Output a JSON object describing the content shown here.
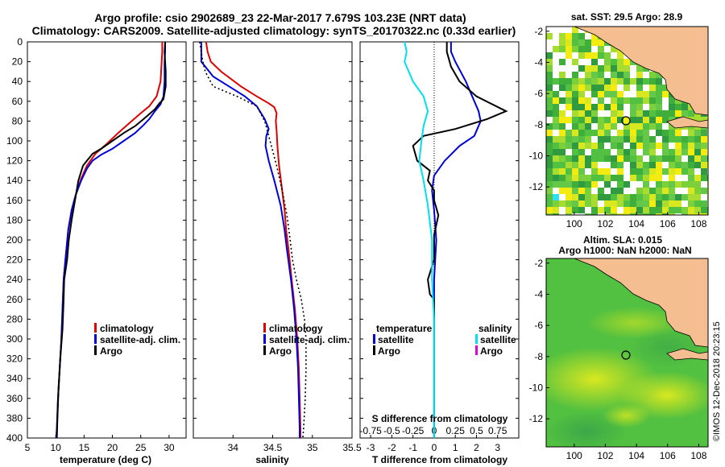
{
  "header": {
    "title_line1": "Argo profile: csio 2902689_23 22-Mar-2017 7.679S 103.23E (NRT data)",
    "title_line2": "Climatology: CARS2009. Satellite-adjusted climatology: synTS_20170322.nc (0.33d earlier)"
  },
  "colors": {
    "climatology": "#e00000",
    "satellite": "#0000dd",
    "argo": "#000000",
    "sat_salinity": "#00e0f0",
    "argo_salinity_diff": "#e000e0",
    "land": "#f5be90"
  },
  "depth_axis": {
    "ylim": [
      0,
      400
    ],
    "ticks": [
      "0",
      "20",
      "40",
      "60",
      "80",
      "100",
      "120",
      "140",
      "160",
      "180",
      "200",
      "220",
      "240",
      "260",
      "280",
      "300",
      "320",
      "340",
      "360",
      "380",
      "400"
    ]
  },
  "chart_data": [
    {
      "type": "line",
      "name": "temperature",
      "xlabel": "temperature (deg C)",
      "xlim": [
        5,
        33
      ],
      "xticks": [
        "5",
        "10",
        "15",
        "20",
        "25",
        "30"
      ],
      "xtick_values": [
        5,
        10,
        15,
        20,
        25,
        30
      ],
      "legend": [
        "climatology",
        "satellite-adj. clim.",
        "Argo"
      ],
      "series": [
        {
          "name": "climatology",
          "color": "#e00000",
          "points": [
            [
              28.8,
              0
            ],
            [
              28.8,
              10
            ],
            [
              28.7,
              20
            ],
            [
              28.5,
              40
            ],
            [
              27.8,
              55
            ],
            [
              26.5,
              65
            ],
            [
              25,
              72
            ],
            [
              23,
              82
            ],
            [
              21,
              92
            ],
            [
              19,
              103
            ],
            [
              17,
              113
            ],
            [
              15.5,
              125
            ],
            [
              14.5,
              138
            ],
            [
              13.5,
              155
            ],
            [
              12.8,
              170
            ],
            [
              12.2,
              190
            ],
            [
              11.8,
              215
            ],
            [
              11.4,
              240
            ],
            [
              11.2,
              270
            ],
            [
              11,
              300
            ],
            [
              10.7,
              330
            ],
            [
              10.4,
              360
            ],
            [
              10.2,
              390
            ],
            [
              10.1,
              400
            ]
          ]
        },
        {
          "name": "satellite-adj. clim.",
          "color": "#0000dd",
          "points": [
            [
              29.3,
              0
            ],
            [
              29.3,
              10
            ],
            [
              29.2,
              20
            ],
            [
              29.2,
              40
            ],
            [
              29,
              55
            ],
            [
              28.5,
              63
            ],
            [
              27.5,
              70
            ],
            [
              26.5,
              78
            ],
            [
              25.5,
              84
            ],
            [
              24,
              92
            ],
            [
              22,
              100
            ],
            [
              20,
              108
            ],
            [
              18,
              114
            ],
            [
              16.5,
              120
            ],
            [
              15.5,
              128
            ],
            [
              14.5,
              140
            ],
            [
              13.5,
              155
            ],
            [
              12.8,
              170
            ],
            [
              12.2,
              190
            ],
            [
              11.8,
              215
            ],
            [
              11.4,
              240
            ],
            [
              11.2,
              270
            ],
            [
              11,
              300
            ],
            [
              10.7,
              330
            ],
            [
              10.4,
              360
            ],
            [
              10.2,
              390
            ],
            [
              10.1,
              400
            ]
          ]
        },
        {
          "name": "Argo",
          "color": "#000000",
          "points": [
            [
              29.3,
              0
            ],
            [
              29.2,
              10
            ],
            [
              29.4,
              30
            ],
            [
              29.4,
              45
            ],
            [
              29,
              58
            ],
            [
              28.3,
              62
            ],
            [
              27.5,
              68
            ],
            [
              26.5,
              73
            ],
            [
              25.5,
              78
            ],
            [
              24,
              85
            ],
            [
              22,
              92
            ],
            [
              20,
              100
            ],
            [
              18,
              108
            ],
            [
              16.5,
              113
            ],
            [
              15.5,
              120
            ],
            [
              14.8,
              125
            ],
            [
              14,
              140
            ],
            [
              13.4,
              160
            ],
            [
              12.8,
              180
            ],
            [
              12.3,
              200
            ],
            [
              12,
              220
            ],
            [
              11.5,
              240
            ],
            [
              11.4,
              260
            ],
            [
              11.2,
              290
            ],
            [
              10.8,
              320
            ],
            [
              10.5,
              350
            ],
            [
              10.3,
              380
            ],
            [
              10.2,
              400
            ]
          ]
        }
      ]
    },
    {
      "type": "line",
      "name": "salinity",
      "xlabel": "salinity",
      "xlim": [
        33.5,
        35.5
      ],
      "xticks": [
        "34",
        "34.5",
        "35",
        "35.5"
      ],
      "xtick_values": [
        34,
        34.5,
        35,
        35.5
      ],
      "legend": [
        "climatology",
        "satellite-adj. clim.",
        "Argo"
      ],
      "series": [
        {
          "name": "climatology",
          "color": "#e00000",
          "points": [
            [
              33.66,
              0
            ],
            [
              33.68,
              10
            ],
            [
              33.72,
              20
            ],
            [
              33.85,
              30
            ],
            [
              34.1,
              45
            ],
            [
              34.3,
              55
            ],
            [
              34.45,
              62
            ],
            [
              34.52,
              66
            ],
            [
              34.55,
              72
            ],
            [
              34.54,
              80
            ],
            [
              34.55,
              90
            ],
            [
              34.56,
              105
            ],
            [
              34.58,
              125
            ],
            [
              34.62,
              150
            ],
            [
              34.65,
              170
            ],
            [
              34.67,
              190
            ],
            [
              34.7,
              210
            ],
            [
              34.74,
              240
            ],
            [
              34.78,
              270
            ],
            [
              34.81,
              300
            ],
            [
              34.83,
              330
            ],
            [
              34.84,
              360
            ],
            [
              34.85,
              390
            ],
            [
              34.85,
              400
            ]
          ]
        },
        {
          "name": "satellite-adj. clim.",
          "color": "#0000dd",
          "points": [
            [
              33.6,
              0
            ],
            [
              33.6,
              20
            ],
            [
              33.75,
              35
            ],
            [
              33.95,
              45
            ],
            [
              34.15,
              55
            ],
            [
              34.3,
              65
            ],
            [
              34.4,
              78
            ],
            [
              34.45,
              88
            ],
            [
              34.42,
              95
            ],
            [
              34.41,
              105
            ],
            [
              34.45,
              120
            ],
            [
              34.52,
              140
            ],
            [
              34.6,
              165
            ],
            [
              34.65,
              190
            ],
            [
              34.68,
              210
            ],
            [
              34.73,
              240
            ],
            [
              34.77,
              270
            ],
            [
              34.8,
              300
            ],
            [
              34.82,
              330
            ],
            [
              34.83,
              360
            ],
            [
              34.84,
              390
            ],
            [
              34.84,
              400
            ]
          ]
        },
        {
          "name": "Argo",
          "color": "#000000",
          "dashed": true,
          "points": [
            [
              33.58,
              0
            ],
            [
              33.62,
              20
            ],
            [
              33.65,
              30
            ],
            [
              33.75,
              45
            ],
            [
              34.05,
              55
            ],
            [
              34.3,
              65
            ],
            [
              34.4,
              80
            ],
            [
              34.45,
              95
            ],
            [
              34.5,
              110
            ],
            [
              34.55,
              125
            ],
            [
              34.62,
              150
            ],
            [
              34.68,
              175
            ],
            [
              34.72,
              200
            ],
            [
              34.75,
              220
            ],
            [
              34.8,
              240
            ],
            [
              34.86,
              260
            ],
            [
              34.9,
              280
            ],
            [
              34.92,
              300
            ],
            [
              34.92,
              330
            ],
            [
              34.91,
              360
            ],
            [
              34.89,
              390
            ],
            [
              34.88,
              400
            ]
          ]
        }
      ]
    },
    {
      "type": "line",
      "name": "difference",
      "xlabel": "T difference from climatology",
      "xlabel_top": "S difference from climatology",
      "xlim": [
        -3.5,
        4
      ],
      "xticks": [
        "-3",
        "-2",
        "-1",
        "0",
        "1",
        "2",
        "3"
      ],
      "xtick_values": [
        -3,
        -2,
        -1,
        0,
        1,
        2,
        3
      ],
      "s_ticks": [
        "-0.75",
        "-0.5",
        "-0.25",
        "0",
        "0.25",
        "0.5",
        "0.75"
      ],
      "s_tick_values": [
        -0.75,
        -0.5,
        -0.25,
        0,
        0.25,
        0.5,
        0.75
      ],
      "legend_temperature": "temperature",
      "legend_salinity": "salinity",
      "legend_entries": [
        "satellite",
        "Argo"
      ],
      "series": [
        {
          "name": "T satellite",
          "color": "#0000dd",
          "points": [
            [
              0.8,
              0
            ],
            [
              0.8,
              10
            ],
            [
              1,
              20
            ],
            [
              1.5,
              40
            ],
            [
              1.8,
              55
            ],
            [
              2.1,
              70
            ],
            [
              2.2,
              80
            ],
            [
              1.9,
              95
            ],
            [
              1.2,
              105
            ],
            [
              0.5,
              120
            ],
            [
              0,
              135
            ],
            [
              -0.1,
              150
            ],
            [
              0,
              170
            ],
            [
              0.1,
              200
            ],
            [
              0,
              240
            ],
            [
              0,
              300
            ],
            [
              0,
              400
            ]
          ]
        },
        {
          "name": "T Argo",
          "color": "#000000",
          "points": [
            [
              0.6,
              0
            ],
            [
              0.6,
              10
            ],
            [
              0.8,
              25
            ],
            [
              1.2,
              40
            ],
            [
              2,
              55
            ],
            [
              3.4,
              70
            ],
            [
              2.5,
              78
            ],
            [
              1,
              88
            ],
            [
              -0.5,
              95
            ],
            [
              -1,
              105
            ],
            [
              -0.8,
              120
            ],
            [
              -0.2,
              130
            ],
            [
              -0.3,
              140
            ],
            [
              0,
              150
            ],
            [
              0,
              160
            ],
            [
              0.2,
              175
            ],
            [
              0,
              195
            ],
            [
              0,
              210
            ],
            [
              0,
              220
            ],
            [
              -0.3,
              240
            ],
            [
              -0.2,
              255
            ],
            [
              0,
              260
            ],
            [
              0,
              300
            ],
            [
              0,
              400
            ]
          ]
        },
        {
          "name": "S satellite",
          "color": "#00e0f0",
          "points": [
            [
              -1.4,
              0
            ],
            [
              -1.3,
              10
            ],
            [
              -1.4,
              20
            ],
            [
              -1,
              40
            ],
            [
              -0.5,
              55
            ],
            [
              -0.3,
              70
            ],
            [
              -0.5,
              85
            ],
            [
              -0.6,
              100
            ],
            [
              -0.7,
              120
            ],
            [
              -0.5,
              140
            ],
            [
              -0.3,
              165
            ],
            [
              -0.1,
              200
            ],
            [
              -0.1,
              240
            ],
            [
              0,
              280
            ],
            [
              0,
              320
            ],
            [
              0,
              400
            ]
          ]
        }
      ]
    }
  ],
  "map_sst": {
    "title": "sat. SST: 29.5 Argo: 28.9",
    "xticks": [
      "100",
      "102",
      "104",
      "106",
      "108"
    ],
    "xtick_values": [
      100,
      102,
      104,
      106,
      108
    ],
    "yticks": [
      "-2",
      "-4",
      "-6",
      "-8",
      "-10",
      "-12"
    ],
    "ytick_values": [
      -2,
      -4,
      -6,
      -8,
      -10,
      -12
    ],
    "xlim": [
      98.2,
      108.6
    ],
    "ylim": [
      -13.8,
      -1.7
    ],
    "argo_lon": 103.23,
    "argo_lat": -7.679
  },
  "map_sla": {
    "title1": "Altim. SLA: 0.015",
    "title2": "Argo h1000: NaN h2000: NaN",
    "xticks": [
      "100",
      "102",
      "104",
      "106",
      "108"
    ],
    "xtick_values": [
      100,
      102,
      104,
      106,
      108
    ],
    "yticks": [
      "-2",
      "-4",
      "-6",
      "-8",
      "-10",
      "-12"
    ],
    "ytick_values": [
      -2,
      -4,
      -6,
      -8,
      -10,
      -12
    ],
    "xlim": [
      98.2,
      108.6
    ],
    "ylim": [
      -13.8,
      -1.7
    ]
  },
  "footer": {
    "credit": "©IMOS 12-Dec-2018 20:23:15"
  }
}
